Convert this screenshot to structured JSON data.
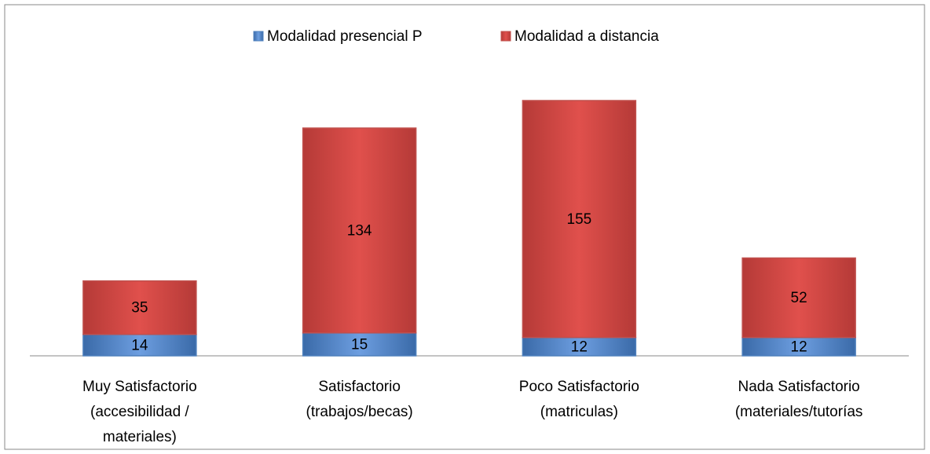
{
  "chart_data": {
    "type": "stacked_bar",
    "categories": [
      [
        "Muy Satisfactorio",
        "(accesibilidad  /",
        "materiales)"
      ],
      [
        "Satisfactorio",
        "(trabajos/becas)"
      ],
      [
        "Poco Satisfactorio",
        "(matriculas)"
      ],
      [
        "Nada Satisfactorio",
        "(materiales/tutorías"
      ]
    ],
    "series": [
      {
        "name": "Modalidad presencial P",
        "color": "#4f81bd",
        "values": [
          14,
          15,
          12,
          12
        ]
      },
      {
        "name": "Modalidad a distancia",
        "color": "#c0504d",
        "values": [
          35,
          134,
          155,
          52
        ]
      }
    ],
    "legend": "top"
  }
}
